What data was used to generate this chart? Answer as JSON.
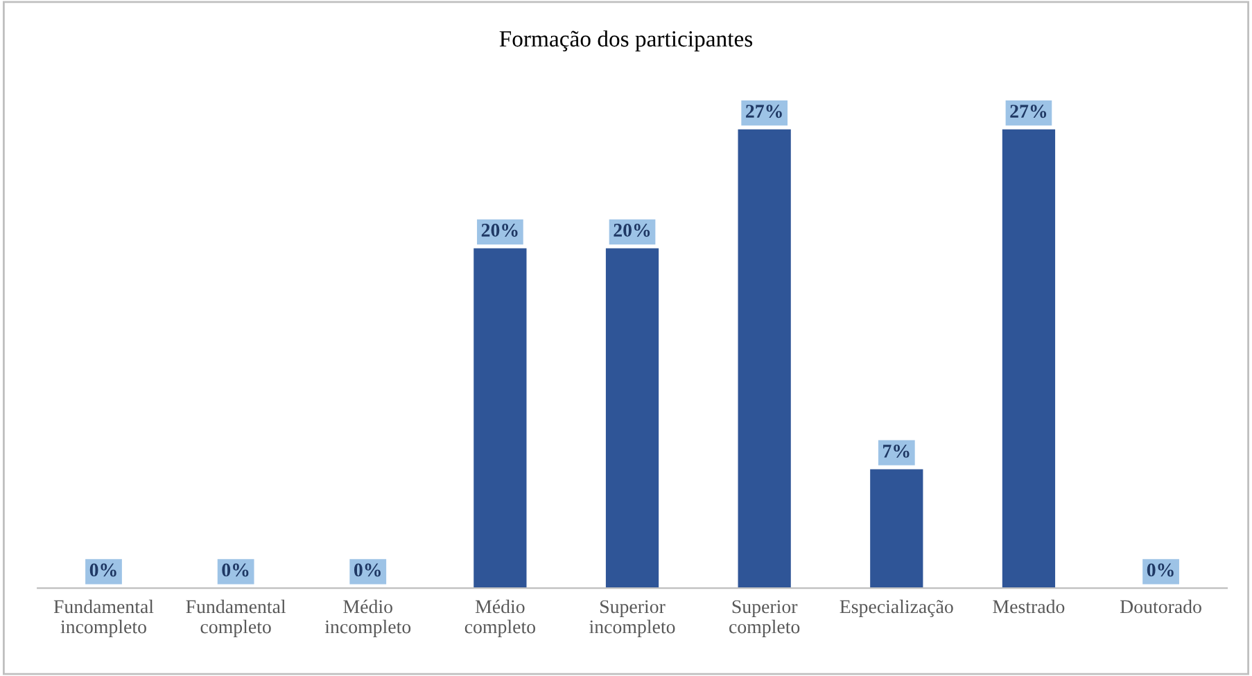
{
  "chart_data": {
    "type": "bar",
    "title": "Formação dos participantes",
    "categories": [
      "Fundamental\nincompleto",
      "Fundamental\ncompleto",
      "Médio\nincompleto",
      "Médio\ncompleto",
      "Superior\nincompleto",
      "Superior\ncompleto",
      "Especialização",
      "Mestrado",
      "Doutorado"
    ],
    "values": [
      0,
      0,
      0,
      20,
      20,
      27,
      7,
      27,
      0
    ],
    "value_labels": [
      "0%",
      "0%",
      "0%",
      "20%",
      "20%",
      "27%",
      "7%",
      "27%",
      "0%"
    ],
    "color": "#2f5597"
  }
}
